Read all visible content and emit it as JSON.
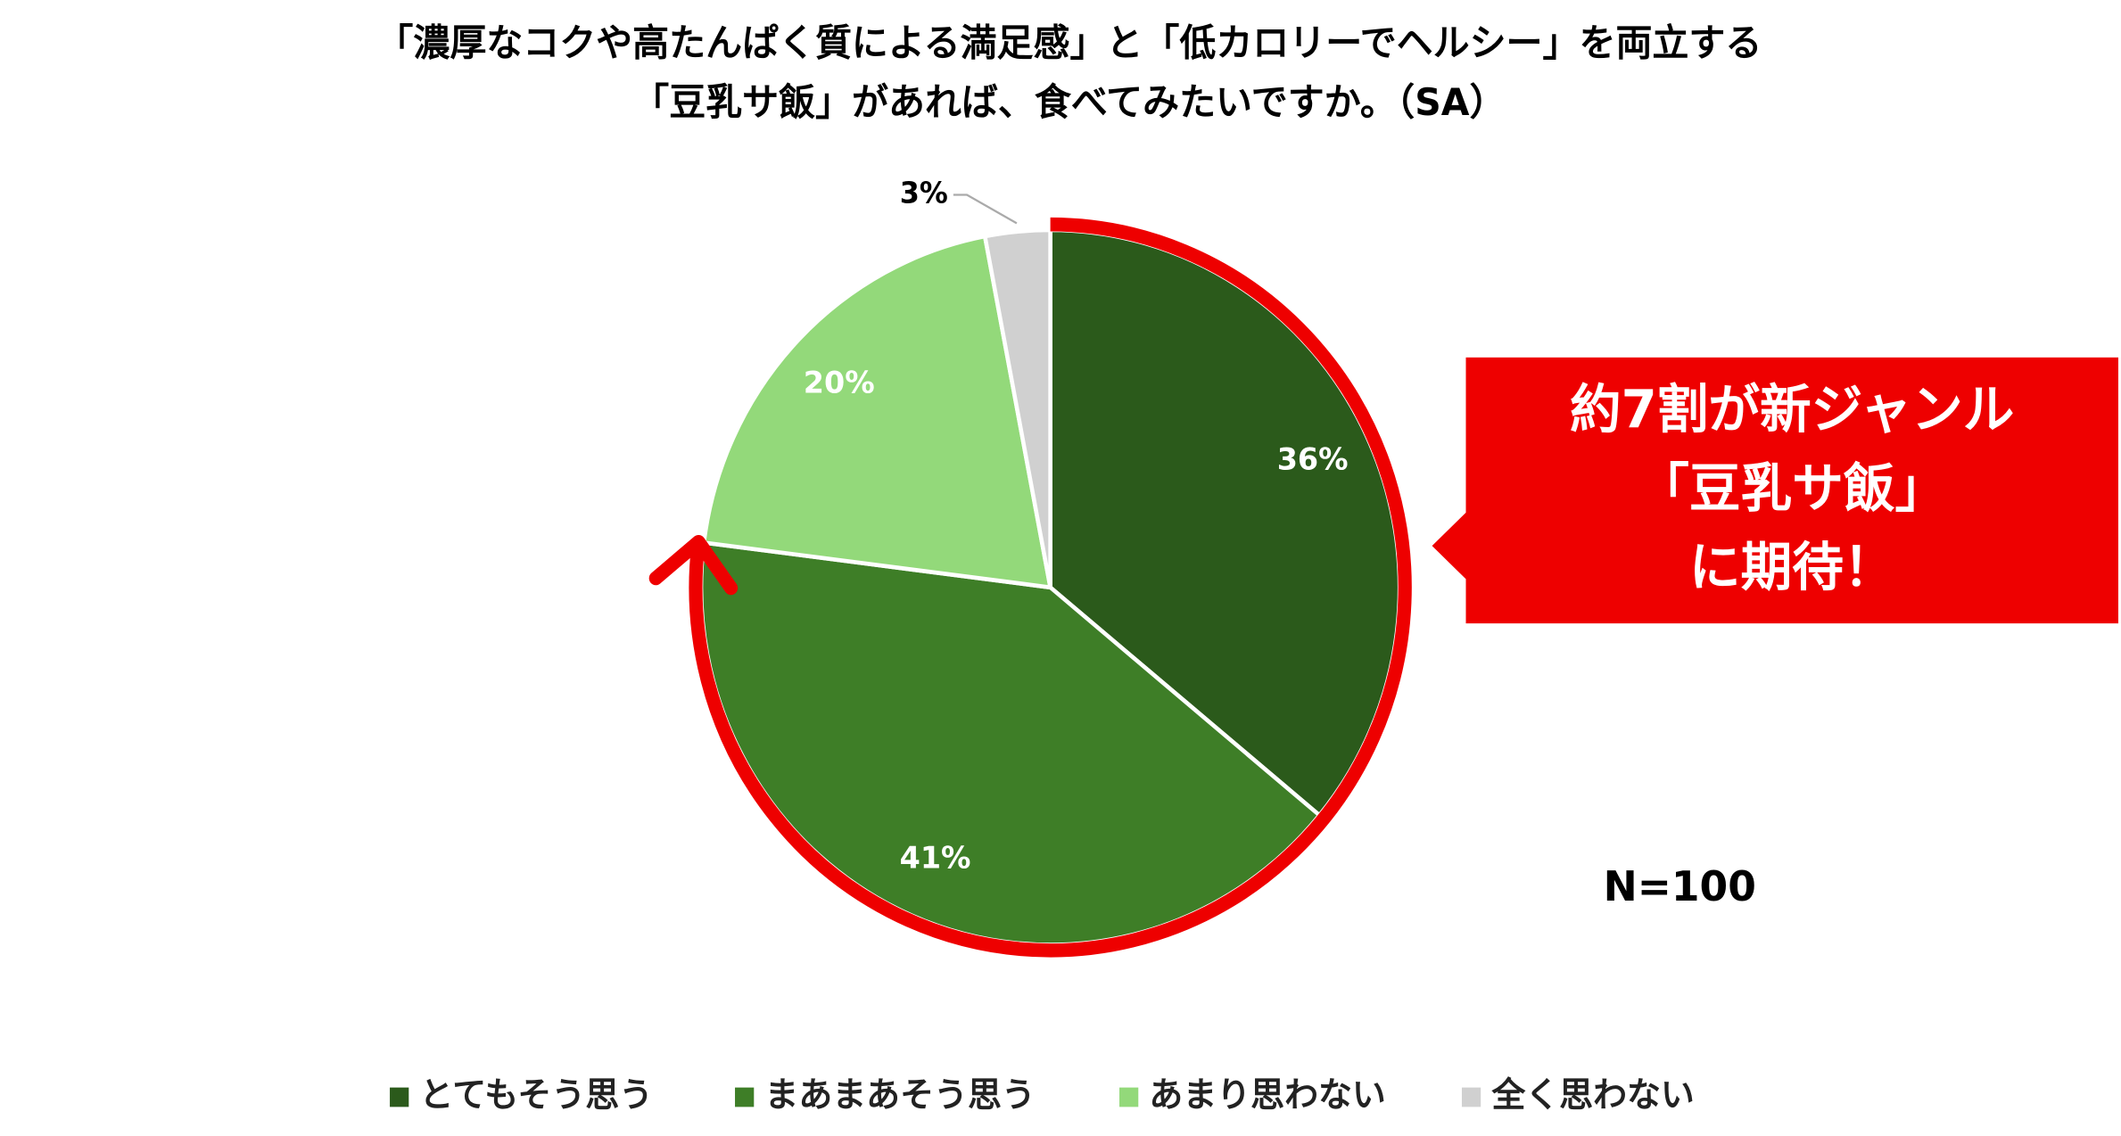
{
  "chart_data": {
    "type": "pie",
    "title": [
      "「濃厚なコクや高たんぱく質による満足感」と「低カロリーでヘルシー」を両立する",
      "「豆乳サ飯」があれば、食べてみたいですか。（SA）"
    ],
    "categories": [
      "とてもそう思う",
      "まあまあそう思う",
      "あまり思わない",
      "全く思わない"
    ],
    "values": [
      36,
      41,
      20,
      3
    ],
    "value_labels": [
      "36%",
      "41%",
      "20%",
      "3%"
    ],
    "colors": [
      "#2b5a1b",
      "#3e7e27",
      "#93d97a",
      "#d0d0d0"
    ],
    "label_colors": [
      "#ffffff",
      "#ffffff",
      "#ffffff",
      "#000000"
    ],
    "annotation": [
      "約7割が新ジャンル",
      "「豆乳サ飯」",
      "に期待！"
    ],
    "note": "N=100"
  }
}
